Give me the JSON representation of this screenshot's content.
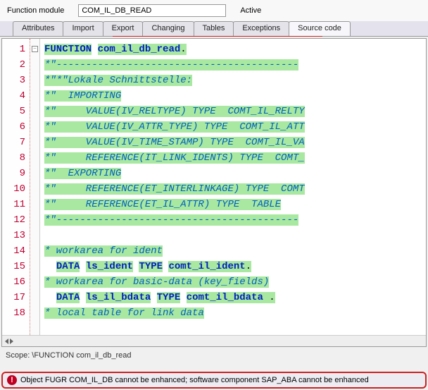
{
  "header": {
    "label": "Function module",
    "value": "COM_IL_DB_READ",
    "status": "Active"
  },
  "tabs": [
    {
      "label": "Attributes"
    },
    {
      "label": "Import"
    },
    {
      "label": "Export"
    },
    {
      "label": "Changing"
    },
    {
      "label": "Tables"
    },
    {
      "label": "Exceptions"
    },
    {
      "label": "Source code"
    }
  ],
  "active_tab_index": 6,
  "code": {
    "lines": [
      {
        "n": 1,
        "segments": [
          {
            "t": "FUNCTION",
            "c": "kw",
            "hl": true
          },
          {
            "t": " ",
            "c": "plain"
          },
          {
            "t": "com_il_db_read",
            "c": "ident",
            "hl": true
          },
          {
            "t": ".",
            "c": "plain",
            "hl": true
          }
        ]
      },
      {
        "n": 2,
        "segments": [
          {
            "t": "*\"-----------------------------------------",
            "c": "cmt",
            "hl": true
          }
        ]
      },
      {
        "n": 3,
        "segments": [
          {
            "t": "*\"*\"Lokale Schnittstelle:",
            "c": "cmt",
            "hl": true
          }
        ]
      },
      {
        "n": 4,
        "segments": [
          {
            "t": "*\"  IMPORTING",
            "c": "cmt",
            "hl": true
          }
        ]
      },
      {
        "n": 5,
        "segments": [
          {
            "t": "*\"     VALUE(IV_RELTYPE) TYPE  COMT_IL_RELTY",
            "c": "cmt",
            "hl": true
          }
        ]
      },
      {
        "n": 6,
        "segments": [
          {
            "t": "*\"     VALUE(IV_ATTR_TYPE) TYPE  COMT_IL_ATT",
            "c": "cmt",
            "hl": true
          }
        ]
      },
      {
        "n": 7,
        "segments": [
          {
            "t": "*\"     VALUE(IV_TIME_STAMP) TYPE  COMT_IL_VA",
            "c": "cmt",
            "hl": true
          }
        ]
      },
      {
        "n": 8,
        "segments": [
          {
            "t": "*\"     REFERENCE(IT_LINK_IDENTS) TYPE  COMT_",
            "c": "cmt",
            "hl": true
          }
        ]
      },
      {
        "n": 9,
        "segments": [
          {
            "t": "*\"  EXPORTING",
            "c": "cmt",
            "hl": true
          }
        ]
      },
      {
        "n": 10,
        "segments": [
          {
            "t": "*\"     REFERENCE(ET_INTERLINKAGE) TYPE  COMT",
            "c": "cmt",
            "hl": true
          }
        ]
      },
      {
        "n": 11,
        "segments": [
          {
            "t": "*\"     REFERENCE(ET_IL_ATTR) TYPE  TABLE",
            "c": "cmt",
            "hl": true
          }
        ]
      },
      {
        "n": 12,
        "segments": [
          {
            "t": "*\"-----------------------------------------",
            "c": "cmt",
            "hl": true
          }
        ]
      },
      {
        "n": 13,
        "segments": [
          {
            "t": "",
            "c": "plain"
          }
        ]
      },
      {
        "n": 14,
        "segments": [
          {
            "t": "* workarea for ident",
            "c": "cmt",
            "hl": true
          }
        ]
      },
      {
        "n": 15,
        "segments": [
          {
            "t": "  ",
            "c": "plain"
          },
          {
            "t": "DATA",
            "c": "kw",
            "hl": true
          },
          {
            "t": " ",
            "c": "plain"
          },
          {
            "t": "ls_ident",
            "c": "ident",
            "hl": true
          },
          {
            "t": " ",
            "c": "plain"
          },
          {
            "t": "TYPE",
            "c": "kw",
            "hl": true
          },
          {
            "t": " ",
            "c": "plain"
          },
          {
            "t": "comt_il_ident",
            "c": "ident",
            "hl": true
          },
          {
            "t": ".",
            "c": "plain",
            "hl": true
          }
        ]
      },
      {
        "n": 16,
        "segments": [
          {
            "t": "* workarea for basic-data (key_fields)",
            "c": "cmt",
            "hl": true
          }
        ]
      },
      {
        "n": 17,
        "segments": [
          {
            "t": "  ",
            "c": "plain"
          },
          {
            "t": "DATA",
            "c": "kw",
            "hl": true
          },
          {
            "t": " ",
            "c": "plain"
          },
          {
            "t": "ls_il_bdata",
            "c": "ident",
            "hl": true
          },
          {
            "t": " ",
            "c": "plain"
          },
          {
            "t": "TYPE",
            "c": "kw",
            "hl": true
          },
          {
            "t": " ",
            "c": "plain"
          },
          {
            "t": "comt_il_bdata",
            "c": "ident",
            "hl": true
          },
          {
            "t": " .",
            "c": "plain",
            "hl": true
          }
        ]
      },
      {
        "n": 18,
        "segments": [
          {
            "t": "* local table for link data",
            "c": "cmt",
            "hl": true
          }
        ]
      }
    ]
  },
  "scope": "Scope: \\FUNCTION com_il_db_read",
  "status_message": "Object FUGR COM_IL_DB cannot be enhanced; software component SAP_ABA cannot be enhanced",
  "colors": {
    "highlight": "#a8e8a0",
    "keyword": "#0020c0",
    "comment": "#0060c0",
    "line_number": "#c00030",
    "error_border": "#cc2222"
  }
}
